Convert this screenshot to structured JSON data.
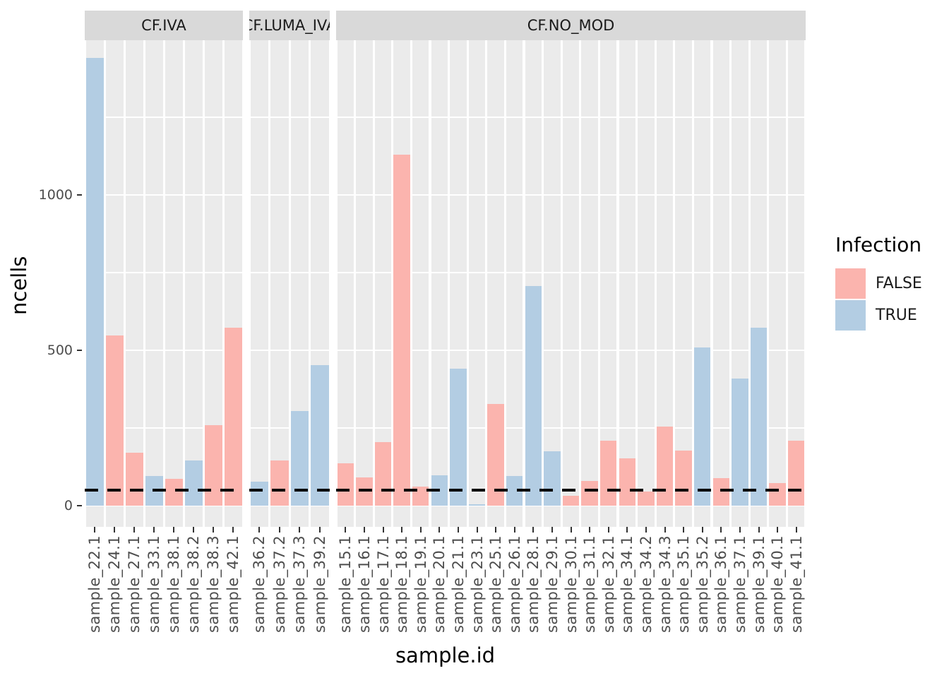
{
  "chart_data": {
    "type": "bar",
    "title": "",
    "xlabel": "sample.id",
    "ylabel": "ncells",
    "ylim": [
      -70,
      1500
    ],
    "yticks": [
      0,
      500,
      1000
    ],
    "grid": {
      "major": [
        0,
        500,
        1000
      ],
      "minor": [
        250,
        750,
        1250
      ]
    },
    "legend": {
      "title": "Infection",
      "position": "right",
      "entries": [
        {
          "label": "FALSE",
          "color": "#FBB4AE"
        },
        {
          "label": "TRUE",
          "color": "#B3CDE3"
        }
      ]
    },
    "hline": {
      "y": 50,
      "linetype": "dashed",
      "color": "#000000"
    },
    "facets": [
      {
        "label": "CF.IVA",
        "bars": [
          {
            "sample": "sample_22.1",
            "infection": "TRUE",
            "ncells": 1440
          },
          {
            "sample": "sample_24.1",
            "infection": "FALSE",
            "ncells": 548
          },
          {
            "sample": "sample_27.1",
            "infection": "FALSE",
            "ncells": 170
          },
          {
            "sample": "sample_33.1",
            "infection": "TRUE",
            "ncells": 95
          },
          {
            "sample": "sample_38.1",
            "infection": "FALSE",
            "ncells": 86
          },
          {
            "sample": "sample_38.2",
            "infection": "TRUE",
            "ncells": 145
          },
          {
            "sample": "sample_38.3",
            "infection": "FALSE",
            "ncells": 259
          },
          {
            "sample": "sample_42.1",
            "infection": "FALSE",
            "ncells": 572
          }
        ]
      },
      {
        "label": "CF.LUMA_IVA",
        "bars": [
          {
            "sample": "sample_36.2",
            "infection": "TRUE",
            "ncells": 78
          },
          {
            "sample": "sample_37.2",
            "infection": "FALSE",
            "ncells": 145
          },
          {
            "sample": "sample_37.3",
            "infection": "TRUE",
            "ncells": 305
          },
          {
            "sample": "sample_39.2",
            "infection": "TRUE",
            "ncells": 452
          }
        ]
      },
      {
        "label": "CF.NO_MOD",
        "bars": [
          {
            "sample": "sample_15.1",
            "infection": "FALSE",
            "ncells": 136
          },
          {
            "sample": "sample_16.1",
            "infection": "FALSE",
            "ncells": 90
          },
          {
            "sample": "sample_17.1",
            "infection": "FALSE",
            "ncells": 205
          },
          {
            "sample": "sample_18.1",
            "infection": "FALSE",
            "ncells": 1130
          },
          {
            "sample": "sample_19.1",
            "infection": "FALSE",
            "ncells": 62
          },
          {
            "sample": "sample_20.1",
            "infection": "TRUE",
            "ncells": 97
          },
          {
            "sample": "sample_21.1",
            "infection": "TRUE",
            "ncells": 440
          },
          {
            "sample": "sample_23.1",
            "infection": "TRUE",
            "ncells": 4
          },
          {
            "sample": "sample_25.1",
            "infection": "FALSE",
            "ncells": 328
          },
          {
            "sample": "sample_26.1",
            "infection": "TRUE",
            "ncells": 96
          },
          {
            "sample": "sample_28.1",
            "infection": "TRUE",
            "ncells": 706
          },
          {
            "sample": "sample_29.1",
            "infection": "TRUE",
            "ncells": 176
          },
          {
            "sample": "sample_30.1",
            "infection": "FALSE",
            "ncells": 32
          },
          {
            "sample": "sample_31.1",
            "infection": "FALSE",
            "ncells": 80
          },
          {
            "sample": "sample_32.1",
            "infection": "FALSE",
            "ncells": 210
          },
          {
            "sample": "sample_34.1",
            "infection": "FALSE",
            "ncells": 152
          },
          {
            "sample": "sample_34.2",
            "infection": "FALSE",
            "ncells": 46
          },
          {
            "sample": "sample_34.3",
            "infection": "FALSE",
            "ncells": 254
          },
          {
            "sample": "sample_35.1",
            "infection": "FALSE",
            "ncells": 178
          },
          {
            "sample": "sample_35.2",
            "infection": "TRUE",
            "ncells": 508
          },
          {
            "sample": "sample_36.1",
            "infection": "FALSE",
            "ncells": 88
          },
          {
            "sample": "sample_37.1",
            "infection": "TRUE",
            "ncells": 410
          },
          {
            "sample": "sample_39.1",
            "infection": "TRUE",
            "ncells": 572
          },
          {
            "sample": "sample_40.1",
            "infection": "FALSE",
            "ncells": 72
          },
          {
            "sample": "sample_41.1",
            "infection": "FALSE",
            "ncells": 210
          }
        ]
      }
    ],
    "colors": {
      "panel_background": "#EBEBEB",
      "strip_background": "#D9D9D9",
      "gridline": "#FFFFFF",
      "axis_text": "#4D4D4D",
      "tick_mark": "#333333"
    }
  }
}
